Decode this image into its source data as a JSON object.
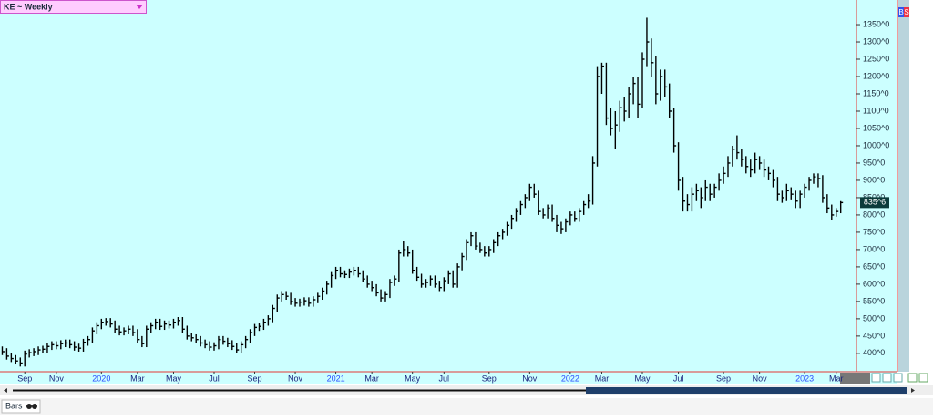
{
  "chart_data": {
    "type": "ohlc",
    "title": "KE ~ Weekly",
    "categories": [
      null,
      null,
      null,
      null,
      null,
      "Sep",
      null,
      null,
      null,
      null,
      null,
      null,
      "Nov",
      null,
      null,
      null,
      null,
      null,
      null,
      null,
      null,
      null,
      "2020",
      null,
      null,
      null,
      null,
      null,
      null,
      null,
      "Mar",
      null,
      null,
      null,
      null,
      null,
      null,
      null,
      "May",
      null,
      null,
      null,
      null,
      null,
      null,
      null,
      null,
      "Jul",
      null,
      null,
      null,
      null,
      null,
      null,
      null,
      null,
      "Sep",
      null,
      null,
      null,
      null,
      null,
      null,
      null,
      null,
      "Nov",
      null,
      null,
      null,
      null,
      null,
      null,
      null,
      null,
      "2021",
      null,
      null,
      null,
      null,
      null,
      null,
      null,
      "Mar",
      null,
      null,
      null,
      null,
      null,
      null,
      null,
      null,
      "May",
      null,
      null,
      null,
      null,
      null,
      null,
      "Jul",
      null,
      null,
      null,
      null,
      null,
      null,
      null,
      null,
      null,
      "Sep",
      null,
      null,
      null,
      null,
      null,
      null,
      null,
      null,
      "Nov",
      null,
      null,
      null,
      null,
      null,
      null,
      null,
      null,
      "2022",
      null,
      null,
      null,
      null,
      null,
      null,
      "Mar",
      null,
      null,
      null,
      null,
      null,
      null,
      null,
      null,
      "May",
      null,
      null,
      null,
      null,
      null,
      null,
      null,
      "Jul",
      null,
      null,
      null,
      null,
      null,
      null,
      null,
      null,
      null,
      "Sep",
      null,
      null,
      null,
      null,
      null,
      null,
      null,
      "Nov",
      null,
      null,
      null,
      null,
      null,
      null,
      null,
      null,
      null,
      "2023",
      null,
      null,
      null,
      null,
      null,
      null,
      "Mar",
      null
    ],
    "high": [
      420,
      415,
      402,
      395,
      388,
      408,
      412,
      415,
      420,
      422,
      430,
      435,
      435,
      438,
      440,
      440,
      435,
      428,
      442,
      450,
      475,
      490,
      500,
      502,
      502,
      495,
      480,
      475,
      480,
      480,
      470,
      450,
      480,
      490,
      500,
      500,
      495,
      495,
      500,
      505,
      505,
      480,
      460,
      455,
      450,
      440,
      435,
      432,
      450,
      450,
      445,
      438,
      430,
      435,
      450,
      470,
      485,
      488,
      500,
      510,
      540,
      570,
      580,
      580,
      575,
      560,
      558,
      562,
      562,
      565,
      575,
      590,
      610,
      635,
      650,
      650,
      640,
      645,
      650,
      650,
      640,
      625,
      610,
      600,
      585,
      580,
      615,
      625,
      700,
      725,
      710,
      700,
      650,
      630,
      615,
      625,
      625,
      610,
      620,
      640,
      640,
      660,
      690,
      730,
      750,
      750,
      720,
      710,
      710,
      730,
      750,
      760,
      780,
      800,
      820,
      840,
      860,
      890,
      890,
      870,
      820,
      830,
      830,
      800,
      780,
      790,
      810,
      810,
      820,
      840,
      860,
      970,
      1230,
      1240,
      1240,
      1110,
      1100,
      1130,
      1140,
      1170,
      1200,
      1200,
      1270,
      1370,
      1310,
      1260,
      1220,
      1220,
      1180,
      1110,
      1010,
      910,
      860,
      880,
      890,
      880,
      900,
      890,
      890,
      920,
      940,
      970,
      1000,
      1030,
      990,
      970,
      960,
      980,
      970,
      960,
      940,
      930,
      910,
      870,
      890,
      880,
      870,
      870,
      890,
      910,
      920,
      920,
      915,
      860,
      830,
      820,
      840
    ],
    "low": [
      395,
      382,
      375,
      368,
      362,
      362,
      388,
      392,
      395,
      400,
      402,
      410,
      412,
      412,
      418,
      415,
      408,
      405,
      405,
      422,
      430,
      455,
      470,
      480,
      475,
      460,
      452,
      452,
      455,
      450,
      430,
      418,
      418,
      460,
      470,
      468,
      468,
      472,
      472,
      480,
      460,
      440,
      435,
      430,
      420,
      415,
      408,
      408,
      412,
      425,
      418,
      410,
      400,
      400,
      415,
      430,
      450,
      465,
      468,
      480,
      490,
      520,
      550,
      555,
      540,
      535,
      535,
      538,
      535,
      535,
      545,
      555,
      570,
      590,
      615,
      620,
      618,
      618,
      625,
      620,
      605,
      590,
      580,
      565,
      550,
      550,
      560,
      595,
      605,
      680,
      680,
      630,
      610,
      590,
      590,
      595,
      590,
      580,
      580,
      600,
      590,
      590,
      640,
      670,
      710,
      700,
      690,
      680,
      680,
      690,
      710,
      730,
      740,
      760,
      780,
      800,
      820,
      840,
      850,
      800,
      790,
      790,
      780,
      750,
      745,
      750,
      770,
      780,
      780,
      800,
      820,
      830,
      940,
      1150,
      1060,
      1030,
      990,
      1040,
      1070,
      1080,
      1120,
      1080,
      1110,
      1230,
      1200,
      1120,
      1130,
      1140,
      1080,
      980,
      870,
      810,
      810,
      810,
      840,
      820,
      840,
      840,
      850,
      870,
      890,
      910,
      940,
      960,
      940,
      920,
      910,
      920,
      930,
      910,
      900,
      880,
      840,
      835,
      840,
      845,
      820,
      820,
      850,
      870,
      890,
      880,
      835,
      805,
      785,
      795,
      805
    ],
    "close": [
      405,
      392,
      385,
      378,
      372,
      398,
      402,
      405,
      410,
      412,
      420,
      425,
      422,
      428,
      430,
      425,
      418,
      415,
      432,
      440,
      465,
      480,
      490,
      492,
      485,
      470,
      462,
      465,
      470,
      460,
      440,
      428,
      470,
      480,
      490,
      478,
      485,
      482,
      490,
      495,
      470,
      450,
      445,
      440,
      430,
      425,
      418,
      422,
      440,
      435,
      428,
      420,
      410,
      425,
      440,
      460,
      475,
      478,
      490,
      500,
      530,
      560,
      570,
      565,
      550,
      545,
      548,
      552,
      545,
      555,
      565,
      580,
      600,
      625,
      640,
      630,
      628,
      635,
      640,
      630,
      615,
      600,
      590,
      575,
      560,
      570,
      605,
      615,
      690,
      700,
      690,
      640,
      620,
      600,
      605,
      615,
      600,
      590,
      610,
      630,
      600,
      650,
      680,
      720,
      740,
      710,
      700,
      690,
      700,
      720,
      740,
      750,
      770,
      790,
      810,
      830,
      850,
      880,
      860,
      810,
      800,
      820,
      790,
      770,
      760,
      780,
      800,
      790,
      810,
      830,
      840,
      950,
      1200,
      1230,
      1080,
      1050,
      1060,
      1110,
      1100,
      1150,
      1180,
      1120,
      1250,
      1300,
      1240,
      1150,
      1200,
      1170,
      1100,
      1000,
      900,
      840,
      830,
      860,
      870,
      850,
      880,
      860,
      880,
      900,
      920,
      950,
      990,
      980,
      960,
      940,
      930,
      960,
      950,
      930,
      920,
      900,
      860,
      850,
      870,
      860,
      840,
      860,
      880,
      900,
      910,
      905,
      850,
      820,
      800,
      810,
      835.75
    ],
    "color": "#000000",
    "last_price": {
      "value": 835.75,
      "label": "835^6"
    },
    "ylim": [
      347,
      1408
    ],
    "yticks": [
      {
        "value": 400,
        "label": "400^0"
      },
      {
        "value": 450,
        "label": "450^0"
      },
      {
        "value": 500,
        "label": "500^0"
      },
      {
        "value": 550,
        "label": "550^0"
      },
      {
        "value": 600,
        "label": "600^0"
      },
      {
        "value": 650,
        "label": "650^0"
      },
      {
        "value": 700,
        "label": "700^0"
      },
      {
        "value": 750,
        "label": "750^0"
      },
      {
        "value": 800,
        "label": "800^0"
      },
      {
        "value": 850,
        "label": "850^0"
      },
      {
        "value": 900,
        "label": "900^0"
      },
      {
        "value": 950,
        "label": "950^0"
      },
      {
        "value": 1000,
        "label": "1000^0"
      },
      {
        "value": 1050,
        "label": "1050^0"
      },
      {
        "value": 1100,
        "label": "1100^0"
      },
      {
        "value": 1150,
        "label": "1150^0"
      },
      {
        "value": 1200,
        "label": "1200^0"
      },
      {
        "value": 1250,
        "label": "1250^0"
      },
      {
        "value": 1300,
        "label": "1300^0"
      },
      {
        "value": 1350,
        "label": "1350^0"
      }
    ]
  },
  "side_buttons": [
    "B",
    "S"
  ],
  "tab": "Bars"
}
